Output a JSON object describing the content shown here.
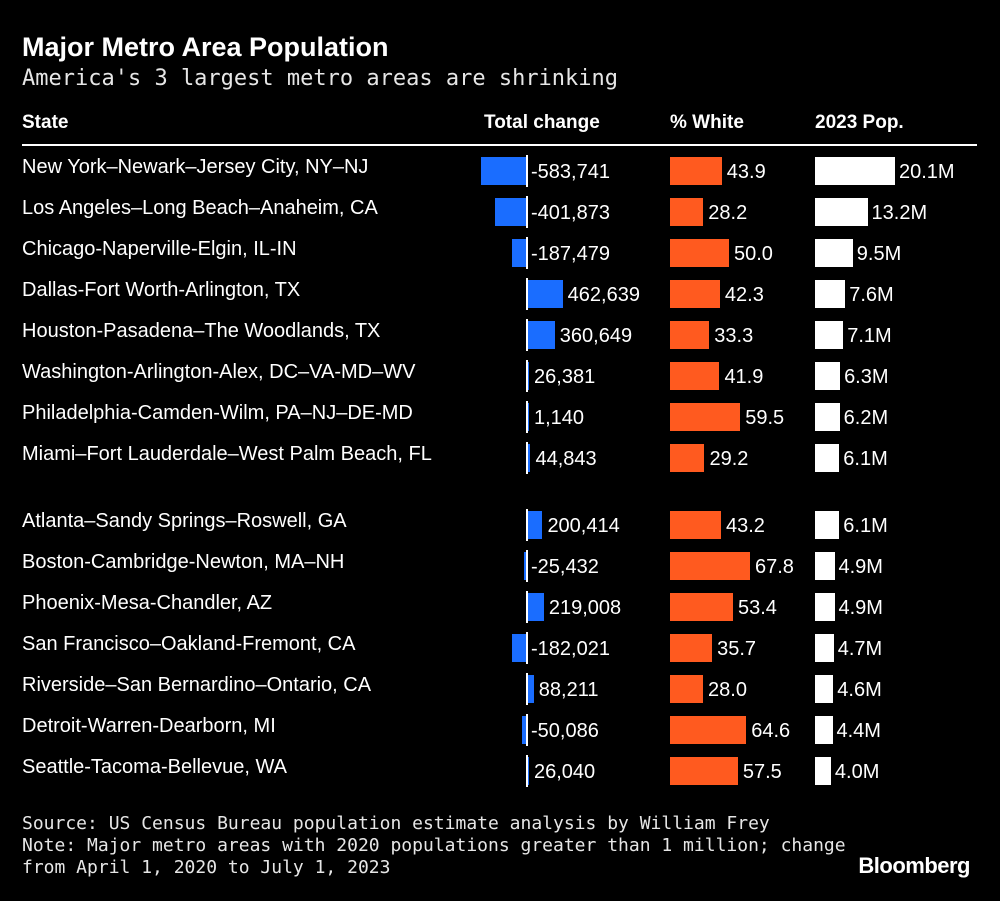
{
  "chart_data": {
    "type": "table",
    "title": "Major Metro Area Population",
    "subtitle": "America's 3 largest metro areas are shrinking",
    "columns": [
      "State",
      "Total change",
      "% White",
      "2023 Pop."
    ],
    "rows": [
      {
        "state": "New York–Newark–Jersey City, NY–NJ",
        "change": -583741,
        "change_label": "-583,741",
        "white": 43.9,
        "white_label": "43.9",
        "pop": 20.1,
        "pop_label": "20.1M"
      },
      {
        "state": "Los Angeles–Long Beach–Anaheim, CA",
        "change": -401873,
        "change_label": "-401,873",
        "white": 28.2,
        "white_label": "28.2",
        "pop": 13.2,
        "pop_label": "13.2M"
      },
      {
        "state": "Chicago-Naperville-Elgin, IL-IN",
        "change": -187479,
        "change_label": "-187,479",
        "white": 50.0,
        "white_label": "50.0",
        "pop": 9.5,
        "pop_label": "9.5M"
      },
      {
        "state": "Dallas-Fort Worth-Arlington, TX",
        "change": 462639,
        "change_label": "462,639",
        "white": 42.3,
        "white_label": "42.3",
        "pop": 7.6,
        "pop_label": "7.6M"
      },
      {
        "state": "Houston-Pasadena–The Woodlands, TX",
        "change": 360649,
        "change_label": "360,649",
        "white": 33.3,
        "white_label": "33.3",
        "pop": 7.1,
        "pop_label": "7.1M"
      },
      {
        "state": "Washington-Arlington-Alex, DC–VA-MD–WV",
        "change": 26381,
        "change_label": "26,381",
        "white": 41.9,
        "white_label": "41.9",
        "pop": 6.3,
        "pop_label": "6.3M"
      },
      {
        "state": "Philadelphia-Camden-Wilm, PA–NJ–DE-MD",
        "change": 1140,
        "change_label": "1,140",
        "white": 59.5,
        "white_label": "59.5",
        "pop": 6.2,
        "pop_label": "6.2M"
      },
      {
        "state": "Miami–Fort Lauderdale–West Palm Beach, FL",
        "change": 44843,
        "change_label": "44,843",
        "white": 29.2,
        "white_label": "29.2",
        "pop": 6.1,
        "pop_label": "6.1M"
      },
      {
        "state": "Atlanta–Sandy Springs–Roswell, GA",
        "change": 200414,
        "change_label": "200,414",
        "white": 43.2,
        "white_label": "43.2",
        "pop": 6.1,
        "pop_label": "6.1M"
      },
      {
        "state": "Boston-Cambridge-Newton, MA–NH",
        "change": -25432,
        "change_label": "-25,432",
        "white": 67.8,
        "white_label": "67.8",
        "pop": 4.9,
        "pop_label": "4.9M"
      },
      {
        "state": "Phoenix-Mesa-Chandler, AZ",
        "change": 219008,
        "change_label": "219,008",
        "white": 53.4,
        "white_label": "53.4",
        "pop": 4.9,
        "pop_label": "4.9M"
      },
      {
        "state": "San Francisco–Oakland-Fremont, CA",
        "change": -182021,
        "change_label": "-182,021",
        "white": 35.7,
        "white_label": "35.7",
        "pop": 4.7,
        "pop_label": "4.7M"
      },
      {
        "state": "Riverside–San Bernardino–Ontario, CA",
        "change": 88211,
        "change_label": "88,211",
        "white": 28.0,
        "white_label": "28.0",
        "pop": 4.6,
        "pop_label": "4.6M"
      },
      {
        "state": "Detroit-Warren-Dearborn, MI",
        "change": -50086,
        "change_label": "-50,086",
        "white": 64.6,
        "white_label": "64.6",
        "pop": 4.4,
        "pop_label": "4.4M"
      },
      {
        "state": "Seattle-Tacoma-Bellevue, WA",
        "change": 26040,
        "change_label": "26,040",
        "white": 57.5,
        "white_label": "57.5",
        "pop": 4.0,
        "pop_label": "4.0M"
      }
    ],
    "colors": {
      "change": "#1a6dff",
      "white": "#ff5a1f",
      "pop": "#ffffff",
      "background": "#000000"
    }
  },
  "footer": {
    "source": "Source: US Census Bureau population estimate analysis by William Frey",
    "note_line1": "Note: Major metro areas with 2020 populations greater than 1 million; change",
    "note_line2": "from April 1, 2020 to July 1, 2023"
  },
  "brand": "Bloomberg"
}
